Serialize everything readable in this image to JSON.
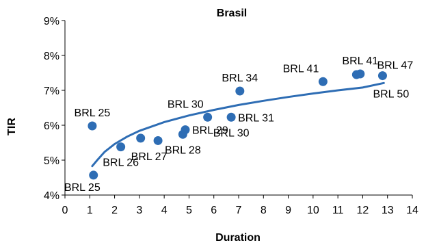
{
  "chart_data": {
    "type": "scatter",
    "title": "Brasil",
    "xlabel": "Duration",
    "ylabel": "TIR",
    "xlim": [
      0,
      14
    ],
    "ylim": [
      4,
      9
    ],
    "x_ticks": [
      "0",
      "1",
      "2",
      "3",
      "4",
      "5",
      "6",
      "7",
      "8",
      "9",
      "10",
      "11",
      "12",
      "13",
      "14"
    ],
    "y_ticks": [
      "4%",
      "5%",
      "6%",
      "7%",
      "8%",
      "9%"
    ],
    "grid": false,
    "legend": "none",
    "color": "#2e6db4",
    "points": [
      {
        "label": "BRL 25",
        "x": 1.15,
        "y": 4.57,
        "label_pos": "below-left"
      },
      {
        "label": "BRL 25",
        "x": 1.1,
        "y": 5.98,
        "label_pos": "above"
      },
      {
        "label": "BRL 26",
        "x": 2.25,
        "y": 5.38,
        "label_pos": "below"
      },
      {
        "label": "BRL 27",
        "x": 3.05,
        "y": 5.63,
        "label_pos": "below-right"
      },
      {
        "label": "",
        "x": 3.75,
        "y": 5.56,
        "label_pos": "none"
      },
      {
        "label": "BRL 28",
        "x": 4.75,
        "y": 5.74,
        "label_pos": "below"
      },
      {
        "label": "BRL 29",
        "x": 4.85,
        "y": 5.87,
        "label_pos": "right"
      },
      {
        "label": "BRL 30",
        "x": 5.75,
        "y": 6.23,
        "label_pos": "above-left"
      },
      {
        "label": "BRL 30",
        "x": 6.7,
        "y": 6.23,
        "label_pos": "below"
      },
      {
        "label": "BRL 31",
        "x": 6.7,
        "y": 6.23,
        "label_pos": "right"
      },
      {
        "label": "BRL 34",
        "x": 7.05,
        "y": 6.98,
        "label_pos": "above"
      },
      {
        "label": "BRL 41",
        "x": 10.4,
        "y": 7.25,
        "label_pos": "above-left"
      },
      {
        "label": "",
        "x": 11.75,
        "y": 7.45,
        "label_pos": "none"
      },
      {
        "label": "BRL 41",
        "x": 11.9,
        "y": 7.47,
        "label_pos": "above"
      },
      {
        "label": "BRL 47",
        "x": 12.8,
        "y": 7.42,
        "label_pos": "above-right"
      },
      {
        "label": "BRL 50",
        "x": 12.8,
        "y": 7.42,
        "label_pos": "below-right"
      }
    ],
    "trendline": {
      "type": "logarithmic",
      "x_range": [
        1.1,
        12.85
      ],
      "points": [
        [
          1.1,
          4.83
        ],
        [
          1.3,
          5.0
        ],
        [
          1.6,
          5.24
        ],
        [
          2,
          5.46
        ],
        [
          2.5,
          5.67
        ],
        [
          3,
          5.84
        ],
        [
          4,
          6.09
        ],
        [
          5,
          6.28
        ],
        [
          6,
          6.44
        ],
        [
          7,
          6.58
        ],
        [
          8,
          6.7
        ],
        [
          9,
          6.81
        ],
        [
          10,
          6.91
        ],
        [
          11,
          7.0
        ],
        [
          12,
          7.08
        ],
        [
          12.85,
          7.21
        ]
      ]
    }
  }
}
